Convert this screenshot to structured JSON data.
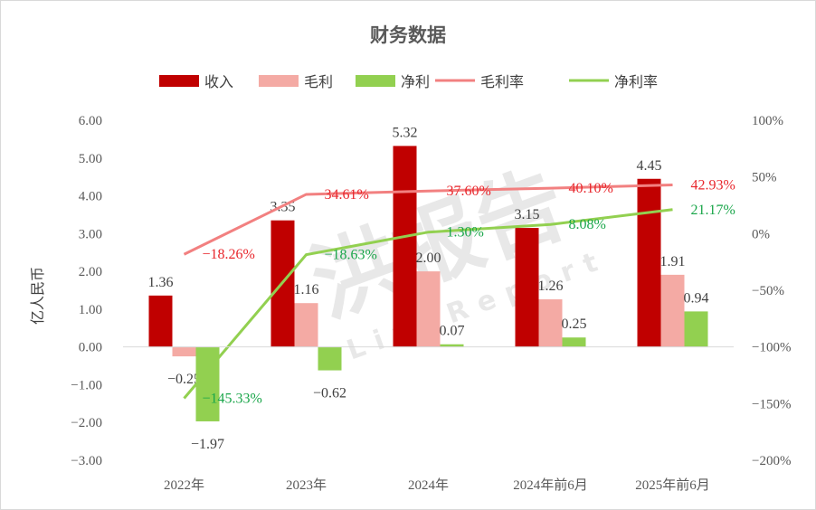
{
  "chart_data": {
    "type": "bar",
    "title": "财务数据",
    "ylabel": "亿人民币",
    "categories": [
      "2022年",
      "2023年",
      "2024年",
      "2024年前6月",
      "2025年前6月"
    ],
    "ylim": [
      -3,
      6
    ],
    "y_ticks": [
      "6.00",
      "5.00",
      "4.00",
      "3.00",
      "2.00",
      "1.00",
      "0.00",
      "-1.00",
      "-2.00",
      "-3.00"
    ],
    "y2lim": [
      -200,
      100
    ],
    "y2_ticks": [
      "100%",
      "50%",
      "0%",
      "-50%",
      "-100%",
      "-150%",
      "-200%"
    ],
    "series": [
      {
        "name": "收入",
        "kind": "bar",
        "color": "#c00000",
        "values": [
          1.36,
          3.35,
          5.32,
          3.15,
          4.45
        ],
        "labels": [
          "1.36",
          "3.35",
          "5.32",
          "3.15",
          "4.45"
        ]
      },
      {
        "name": "毛利",
        "kind": "bar",
        "color": "#f4aaa4",
        "values": [
          -0.25,
          1.16,
          2.0,
          1.26,
          1.91
        ],
        "labels": [
          "-0.25",
          "1.16",
          "2.00",
          "1.26",
          "1.91"
        ]
      },
      {
        "name": "净利",
        "kind": "bar",
        "color": "#92d050",
        "values": [
          -1.97,
          -0.62,
          0.07,
          0.25,
          0.94
        ],
        "labels": [
          "-1.97",
          "-0.62",
          "0.07",
          "0.25",
          "0.94"
        ]
      },
      {
        "name": "毛利率",
        "kind": "line",
        "axis": "right",
        "color": "#f28080",
        "label_color": "#e8262c",
        "values": [
          -18.26,
          34.61,
          37.6,
          40.1,
          42.93
        ],
        "labels": [
          "-18.26%",
          "34.61%",
          "37.60%",
          "40.10%",
          "42.93%"
        ]
      },
      {
        "name": "净利率",
        "kind": "line",
        "axis": "right",
        "color": "#92d050",
        "label_color": "#1aa64a",
        "values": [
          -145.33,
          -18.63,
          1.3,
          8.08,
          21.17
        ],
        "labels": [
          "-145.33%",
          "-18.63%",
          "1.30%",
          "8.08%",
          "21.17%"
        ]
      }
    ],
    "legend_position": "top",
    "grid": false
  },
  "watermark": {
    "main": "洪报告",
    "sub": "LiveReport"
  }
}
